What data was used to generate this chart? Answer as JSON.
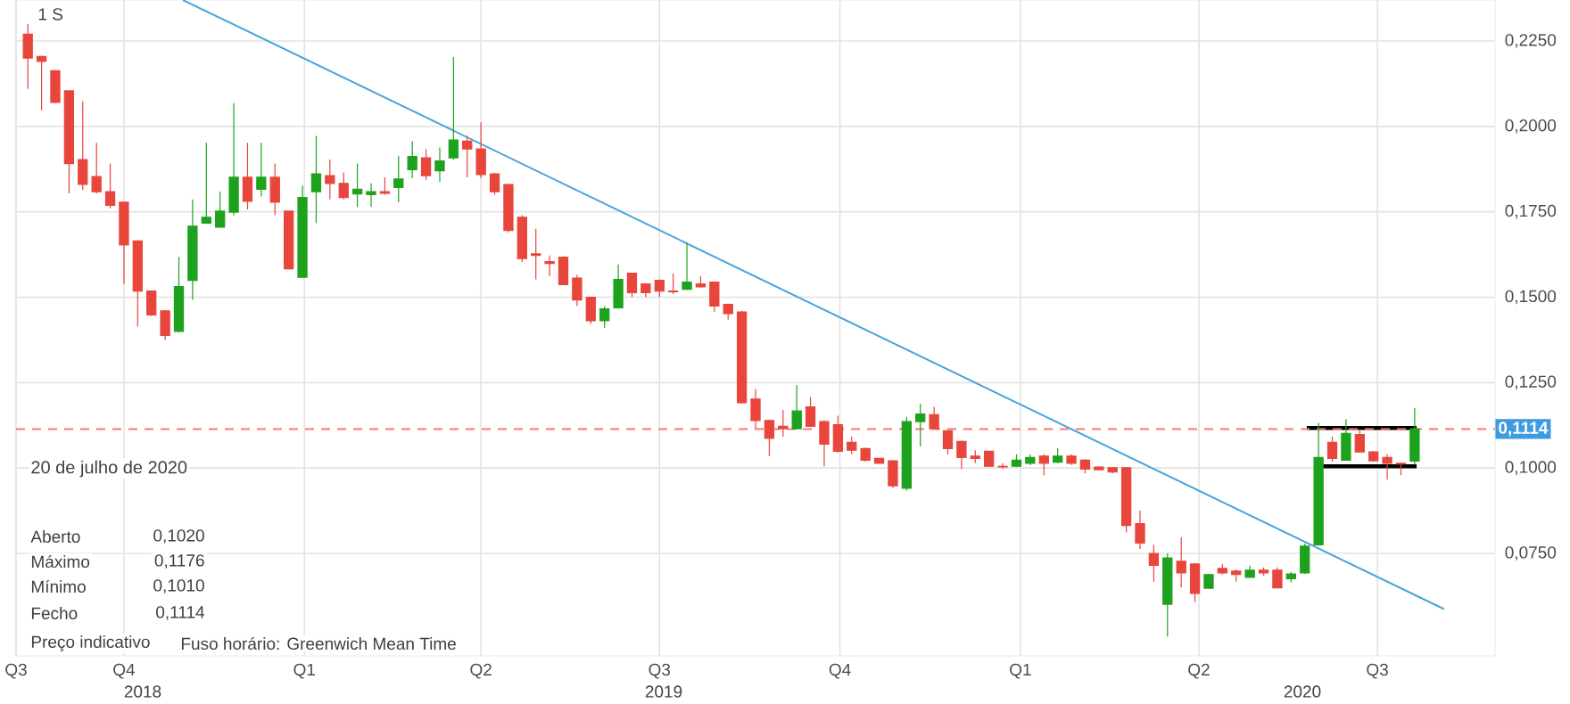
{
  "chart_data": {
    "type": "candlestick",
    "x": [
      "2018-08-13",
      "2018-08-20",
      "2018-08-27",
      "2018-09-03",
      "2018-09-10",
      "2018-09-17",
      "2018-09-24",
      "2018-10-01",
      "2018-10-08",
      "2018-10-15",
      "2018-10-22",
      "2018-10-29",
      "2018-11-05",
      "2018-11-12",
      "2018-11-19",
      "2018-11-26",
      "2018-12-03",
      "2018-12-10",
      "2018-12-17",
      "2018-12-24",
      "2018-12-31",
      "2019-01-07",
      "2019-01-14",
      "2019-01-21",
      "2019-01-28",
      "2019-02-04",
      "2019-02-11",
      "2019-02-18",
      "2019-02-25",
      "2019-03-04",
      "2019-03-11",
      "2019-03-18",
      "2019-03-25",
      "2019-04-01",
      "2019-04-08",
      "2019-04-15",
      "2019-04-22",
      "2019-04-29",
      "2019-05-06",
      "2019-05-13",
      "2019-05-20",
      "2019-05-27",
      "2019-06-03",
      "2019-06-10",
      "2019-06-17",
      "2019-06-24",
      "2019-07-01",
      "2019-07-08",
      "2019-07-15",
      "2019-07-22",
      "2019-07-29",
      "2019-08-05",
      "2019-08-12",
      "2019-08-19",
      "2019-08-26",
      "2019-09-02",
      "2019-09-09",
      "2019-09-16",
      "2019-09-23",
      "2019-09-30",
      "2019-10-07",
      "2019-10-14",
      "2019-10-21",
      "2019-10-28",
      "2019-11-04",
      "2019-11-11",
      "2019-11-18",
      "2019-11-25",
      "2019-12-02",
      "2019-12-09",
      "2019-12-16",
      "2019-12-23",
      "2019-12-30",
      "2020-01-06",
      "2020-01-13",
      "2020-01-20",
      "2020-01-27",
      "2020-02-03",
      "2020-02-10",
      "2020-02-17",
      "2020-02-24",
      "2020-03-02",
      "2020-03-09",
      "2020-03-16",
      "2020-03-23",
      "2020-03-30",
      "2020-04-06",
      "2020-04-13",
      "2020-04-20",
      "2020-04-27",
      "2020-05-04",
      "2020-05-11",
      "2020-05-18",
      "2020-05-25",
      "2020-06-01",
      "2020-06-08",
      "2020-06-15",
      "2020-06-22",
      "2020-06-29",
      "2020-07-06",
      "2020-07-13",
      "2020-07-20"
    ],
    "ohlc": [
      [
        0.227,
        0.23,
        0.211,
        0.22
      ],
      [
        0.2205,
        0.2205,
        0.2047,
        0.219
      ],
      [
        0.2163,
        0.2165,
        0.2068,
        0.207
      ],
      [
        0.2104,
        0.2106,
        0.1804,
        0.1891
      ],
      [
        0.1903,
        0.2073,
        0.1813,
        0.183
      ],
      [
        0.1853,
        0.1952,
        0.1804,
        0.1809
      ],
      [
        0.1809,
        0.1891,
        0.176,
        0.1769
      ],
      [
        0.1778,
        0.178,
        0.1539,
        0.1653
      ],
      [
        0.1665,
        0.1667,
        0.1414,
        0.1518
      ],
      [
        0.1518,
        0.152,
        0.1445,
        0.1448
      ],
      [
        0.146,
        0.1462,
        0.1375,
        0.1388
      ],
      [
        0.14,
        0.1618,
        0.1397,
        0.1531
      ],
      [
        0.1549,
        0.1786,
        0.1492,
        0.1708
      ],
      [
        0.1717,
        0.1952,
        0.1715,
        0.1734
      ],
      [
        0.1705,
        0.1809,
        0.1703,
        0.1752
      ],
      [
        0.1749,
        0.2068,
        0.174,
        0.1851
      ],
      [
        0.1851,
        0.1952,
        0.1757,
        0.1781
      ],
      [
        0.1816,
        0.1952,
        0.1795,
        0.1851
      ],
      [
        0.1851,
        0.1891,
        0.174,
        0.1778
      ],
      [
        0.1752,
        0.1754,
        0.1581,
        0.1583
      ],
      [
        0.1558,
        0.1827,
        0.1556,
        0.1792
      ],
      [
        0.1809,
        0.1972,
        0.1717,
        0.1861
      ],
      [
        0.1856,
        0.1903,
        0.1786,
        0.1833
      ],
      [
        0.1833,
        0.1865,
        0.1786,
        0.1792
      ],
      [
        0.1802,
        0.1891,
        0.1764,
        0.1816
      ],
      [
        0.18,
        0.1833,
        0.1764,
        0.1809
      ],
      [
        0.1809,
        0.1851,
        0.18,
        0.1804
      ],
      [
        0.1821,
        0.1914,
        0.1778,
        0.1846
      ],
      [
        0.1873,
        0.1957,
        0.1848,
        0.1912
      ],
      [
        0.1908,
        0.1934,
        0.1844,
        0.1856
      ],
      [
        0.187,
        0.1938,
        0.1837,
        0.1899
      ],
      [
        0.1908,
        0.2203,
        0.1903,
        0.196
      ],
      [
        0.1957,
        0.1972,
        0.1851,
        0.1934
      ],
      [
        0.1934,
        0.2012,
        0.1848,
        0.1859
      ],
      [
        0.1861,
        0.1864,
        0.18,
        0.1809
      ],
      [
        0.183,
        0.1832,
        0.169,
        0.1695
      ],
      [
        0.1734,
        0.174,
        0.1603,
        0.1613
      ],
      [
        0.1627,
        0.17,
        0.1552,
        0.1622
      ],
      [
        0.1604,
        0.1622,
        0.1561,
        0.1599
      ],
      [
        0.1617,
        0.162,
        0.1535,
        0.1537
      ],
      [
        0.1556,
        0.1566,
        0.1474,
        0.1492
      ],
      [
        0.15,
        0.1502,
        0.1422,
        0.1431
      ],
      [
        0.1431,
        0.1474,
        0.141,
        0.1466
      ],
      [
        0.1469,
        0.1596,
        0.1467,
        0.1552
      ],
      [
        0.157,
        0.1572,
        0.15,
        0.1513
      ],
      [
        0.1539,
        0.1541,
        0.15,
        0.1513
      ],
      [
        0.1549,
        0.1552,
        0.15,
        0.1518
      ],
      [
        0.1518,
        0.157,
        0.1509,
        0.1516
      ],
      [
        0.1523,
        0.166,
        0.1521,
        0.1544
      ],
      [
        0.1539,
        0.1561,
        0.1528,
        0.153
      ],
      [
        0.1544,
        0.1546,
        0.1457,
        0.1474
      ],
      [
        0.1479,
        0.1482,
        0.1434,
        0.1452
      ],
      [
        0.1457,
        0.146,
        0.1188,
        0.1191
      ],
      [
        0.1202,
        0.1231,
        0.1115,
        0.1139
      ],
      [
        0.1139,
        0.1141,
        0.1035,
        0.1087
      ],
      [
        0.1122,
        0.117,
        0.1092,
        0.1115
      ],
      [
        0.1115,
        0.1243,
        0.1113,
        0.1167
      ],
      [
        0.1179,
        0.1208,
        0.112,
        0.1122
      ],
      [
        0.1136,
        0.114,
        0.1005,
        0.107
      ],
      [
        0.1127,
        0.1153,
        0.1045,
        0.1049
      ],
      [
        0.1075,
        0.1092,
        0.104,
        0.1052
      ],
      [
        0.1057,
        0.106,
        0.1018,
        0.1023
      ],
      [
        0.1028,
        0.103,
        0.1012,
        0.1014
      ],
      [
        0.1021,
        0.1023,
        0.0941,
        0.0948
      ],
      [
        0.0941,
        0.115,
        0.0934,
        0.1136
      ],
      [
        0.1136,
        0.1188,
        0.1063,
        0.1158
      ],
      [
        0.1156,
        0.1179,
        0.1113,
        0.1115
      ],
      [
        0.1109,
        0.1111,
        0.104,
        0.1057
      ],
      [
        0.1078,
        0.108,
        0.0997,
        0.1031
      ],
      [
        0.1035,
        0.1052,
        0.1014,
        0.1028
      ],
      [
        0.1049,
        0.105,
        0.1003,
        0.1005
      ],
      [
        0.1005,
        0.1014,
        0.0997,
        0.1003
      ],
      [
        0.1005,
        0.104,
        0.1003,
        0.1023
      ],
      [
        0.1014,
        0.104,
        0.1009,
        0.1031
      ],
      [
        0.1035,
        0.104,
        0.0979,
        0.1014
      ],
      [
        0.1017,
        0.1057,
        0.1014,
        0.1035
      ],
      [
        0.1035,
        0.104,
        0.1009,
        0.1014
      ],
      [
        0.1023,
        0.1026,
        0.0984,
        0.0997
      ],
      [
        0.1003,
        0.1005,
        0.0993,
        0.0995
      ],
      [
        0.1001,
        0.1003,
        0.0985,
        0.0988
      ],
      [
        0.1001,
        0.1003,
        0.0811,
        0.0832
      ],
      [
        0.0837,
        0.0875,
        0.0763,
        0.078
      ],
      [
        0.075,
        0.0775,
        0.0667,
        0.0715
      ],
      [
        0.0601,
        0.075,
        0.0507,
        0.0737
      ],
      [
        0.0727,
        0.0797,
        0.065,
        0.0693
      ],
      [
        0.0719,
        0.0722,
        0.0607,
        0.0633
      ],
      [
        0.0648,
        0.069,
        0.0646,
        0.0688
      ],
      [
        0.0706,
        0.0719,
        0.0688,
        0.0693
      ],
      [
        0.0698,
        0.0703,
        0.0667,
        0.0688
      ],
      [
        0.068,
        0.0714,
        0.0678,
        0.0701
      ],
      [
        0.0701,
        0.0709,
        0.0685,
        0.0693
      ],
      [
        0.0701,
        0.0709,
        0.0647,
        0.0649
      ],
      [
        0.0676,
        0.0696,
        0.0665,
        0.069
      ],
      [
        0.0693,
        0.0779,
        0.069,
        0.0771
      ],
      [
        0.0775,
        0.1132,
        0.0773,
        0.1031
      ],
      [
        0.1075,
        0.1092,
        0.1018,
        0.1028
      ],
      [
        0.1023,
        0.1143,
        0.1021,
        0.1101
      ],
      [
        0.1098,
        0.1114,
        0.1045,
        0.1047
      ],
      [
        0.1047,
        0.105,
        0.1018,
        0.1021
      ],
      [
        0.1031,
        0.104,
        0.0966,
        0.1014
      ],
      [
        0.1014,
        0.1016,
        0.0979,
        0.1012
      ],
      [
        0.102,
        0.1176,
        0.101,
        0.1114
      ]
    ],
    "colors": [
      "#e8463c",
      "#e8463c",
      "#e8463c",
      "#e8463c",
      "#e8463c",
      "#e8463c",
      "#e8463c",
      "#e8463c",
      "#e8463c",
      "#e8463c",
      "#e8463c",
      "#1ea21e",
      "#1ea21e",
      "#1ea21e",
      "#1ea21e",
      "#1ea21e",
      "#e8463c",
      "#1ea21e",
      "#e8463c",
      "#e8463c",
      "#1ea21e",
      "#1ea21e",
      "#e8463c",
      "#e8463c",
      "#1ea21e",
      "#1ea21e",
      "#e8463c",
      "#1ea21e",
      "#1ea21e",
      "#e8463c",
      "#1ea21e",
      "#1ea21e",
      "#e8463c",
      "#e8463c",
      "#e8463c",
      "#e8463c",
      "#e8463c",
      "#e8463c",
      "#e8463c",
      "#e8463c",
      "#e8463c",
      "#e8463c",
      "#1ea21e",
      "#1ea21e",
      "#e8463c",
      "#e8463c",
      "#e8463c",
      "#e8463c",
      "#1ea21e",
      "#e8463c",
      "#e8463c",
      "#e8463c",
      "#e8463c",
      "#e8463c",
      "#e8463c",
      "#e8463c",
      "#1ea21e",
      "#e8463c",
      "#e8463c",
      "#e8463c",
      "#e8463c",
      "#e8463c",
      "#e8463c",
      "#e8463c",
      "#1ea21e",
      "#1ea21e",
      "#e8463c",
      "#e8463c",
      "#e8463c",
      "#e8463c",
      "#e8463c",
      "#e8463c",
      "#1ea21e",
      "#1ea21e",
      "#e8463c",
      "#1ea21e",
      "#e8463c",
      "#e8463c",
      "#e8463c",
      "#e8463c",
      "#e8463c",
      "#e8463c",
      "#e8463c",
      "#1ea21e",
      "#e8463c",
      "#e8463c",
      "#1ea21e",
      "#e8463c",
      "#e8463c",
      "#1ea21e",
      "#e8463c",
      "#e8463c",
      "#1ea21e",
      "#1ea21e",
      "#1ea21e",
      "#e8463c",
      "#1ea21e",
      "#e8463c",
      "#e8463c",
      "#e8463c",
      "#e8463c",
      "#1ea21e"
    ],
    "series": [
      {
        "type": "line",
        "color": "#4aa3df",
        "x": [
          "2018-10-31",
          "2020-08-04"
        ],
        "values": [
          0.237,
          0.0587
        ]
      },
      {
        "type": "line",
        "color": "#000000",
        "x": [
          "2020-05-26",
          "2020-07-21"
        ],
        "values": [
          0.1117,
          0.1117
        ]
      },
      {
        "type": "line",
        "color": "#000000",
        "x": [
          "2020-06-02",
          "2020-07-21"
        ],
        "values": [
          0.1005,
          0.1005
        ]
      }
    ],
    "xlim": [
      "2018-08-07",
      "2020-08-30"
    ],
    "xticks": [
      {
        "value": "2018-08-07",
        "label": "Q3"
      },
      {
        "value": "2018-10-01",
        "label": "Q4"
      },
      {
        "value": "2019-01-01",
        "label": "Q1"
      },
      {
        "value": "2019-04-01",
        "label": "Q2"
      },
      {
        "value": "2019-07-01",
        "label": "Q3"
      },
      {
        "value": "2019-10-01",
        "label": "Q4"
      },
      {
        "value": "2020-01-01",
        "label": "Q1"
      },
      {
        "value": "2020-04-01",
        "label": "Q2"
      },
      {
        "value": "2020-07-01",
        "label": "Q3"
      }
    ],
    "ylim": [
      0.045,
      0.237
    ],
    "yticks": [
      {
        "value": 0.075,
        "label": "0,0750"
      },
      {
        "value": 0.1,
        "label": "0,1000"
      },
      {
        "value": 0.125,
        "label": "0,1250"
      },
      {
        "value": 0.15,
        "label": "0,1500"
      },
      {
        "value": 0.175,
        "label": "0,1750"
      },
      {
        "value": 0.2,
        "label": "0,2000"
      },
      {
        "value": 0.225,
        "label": "0,2250"
      }
    ],
    "grid": true,
    "ref_lines": [
      {
        "axis": "y",
        "value": 0.1114,
        "label": "0,1114",
        "color": "#f07c74",
        "line_style": "dashed"
      }
    ],
    "annotations": [
      "1 S",
      "20 de julho de 2020",
      "Aberto",
      "0,1020",
      "Máximo",
      "0,1176",
      "Mínimo",
      "0,1010",
      "Fecho",
      "0,1114",
      "Preço indicativo",
      "Fuso horário: Greenwich Mean Time",
      "2018",
      "2019",
      "2020"
    ]
  }
}
